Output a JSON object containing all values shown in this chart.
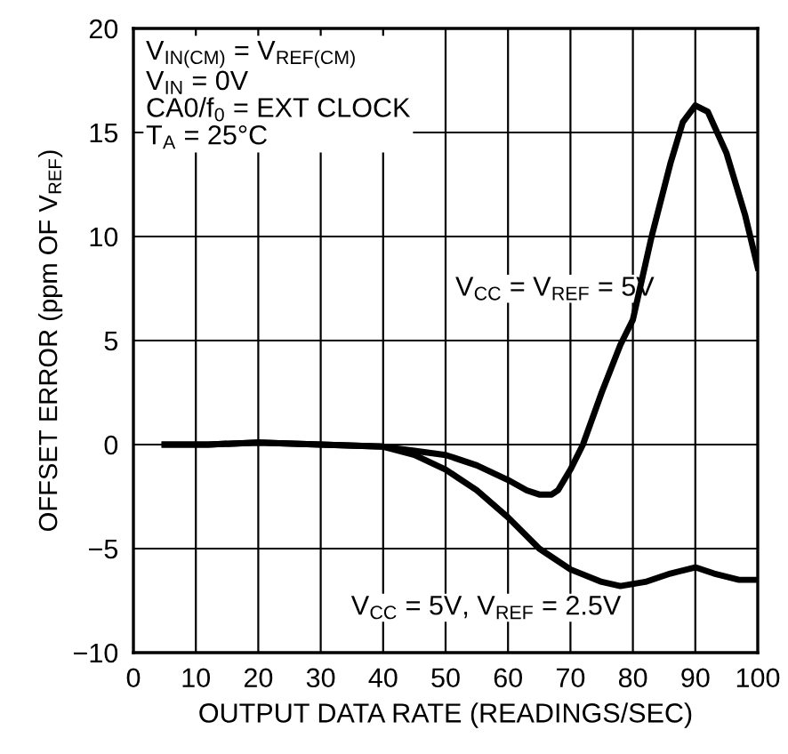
{
  "chart_data": {
    "type": "line",
    "xlabel": "OUTPUT DATA RATE (READINGS/SEC)",
    "ylabel": "OFFSET ERROR (ppm OF V$_{REF}$)",
    "xlim": [
      0,
      100
    ],
    "ylim": [
      -10,
      20
    ],
    "xticks": [
      0,
      10,
      20,
      30,
      40,
      50,
      60,
      70,
      80,
      90,
      100
    ],
    "yticks": [
      -10,
      -5,
      0,
      5,
      10,
      15,
      20
    ],
    "grid": true,
    "series": [
      {
        "name": "V$_{CC}$ = V$_{REF}$ = 5V",
        "color": "#000000",
        "x": [
          5,
          12,
          20,
          30,
          40,
          45,
          50,
          55,
          60,
          63,
          65,
          67,
          68,
          70,
          72,
          75,
          78,
          80,
          83,
          86,
          88,
          90,
          92,
          95,
          98,
          100
        ],
        "values": [
          0,
          0,
          0.1,
          0,
          -0.1,
          -0.3,
          -0.5,
          -1.0,
          -1.7,
          -2.2,
          -2.4,
          -2.4,
          -2.2,
          -1.2,
          0,
          2.5,
          4.8,
          6,
          10,
          13.5,
          15.5,
          16.3,
          16,
          14,
          11,
          8.5
        ]
      },
      {
        "name": "V$_{CC}$ = 5V, V$_{REF}$ = 2.5V",
        "color": "#000000",
        "x": [
          5,
          12,
          20,
          30,
          40,
          45,
          50,
          55,
          60,
          65,
          70,
          75,
          78,
          82,
          86,
          90,
          93,
          97,
          100
        ],
        "values": [
          0,
          0,
          0.1,
          0,
          -0.1,
          -0.5,
          -1.2,
          -2.2,
          -3.5,
          -5.0,
          -6.0,
          -6.6,
          -6.8,
          -6.6,
          -6.2,
          -5.9,
          -6.2,
          -6.5,
          -6.5
        ]
      }
    ],
    "annotations": [
      "V$_{IN(CM)}$ = V$_{REF(CM)}$",
      "V$_{IN}$ = 0V",
      "CA0/f$_{0}$ = EXT CLOCK",
      "T$_{A}$ = 25°C"
    ]
  }
}
